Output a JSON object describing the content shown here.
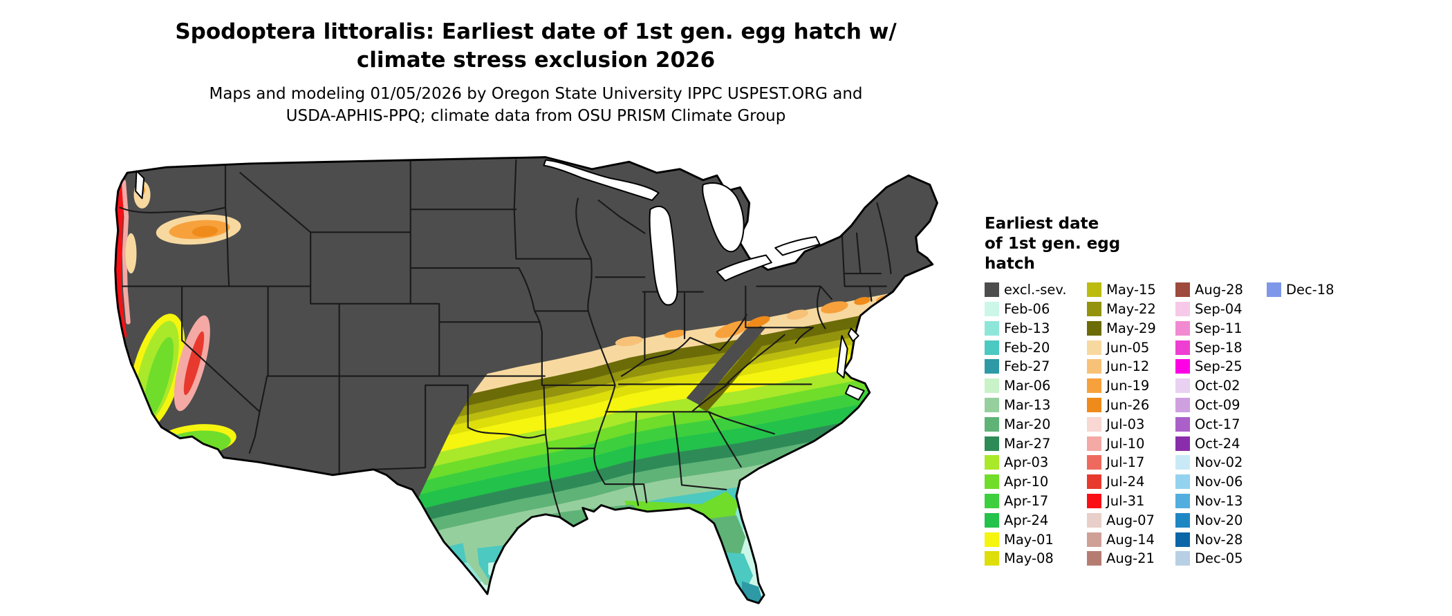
{
  "title": {
    "line1": "Spodoptera littoralis: Earliest date of 1st gen. egg hatch w/",
    "line2": "climate stress exclusion 2026"
  },
  "subtitle": {
    "line1": "Maps and modeling 01/05/2026 by Oregon State University IPPC USPEST.ORG and",
    "line2": "USDA-APHIS-PPQ; climate data from OSU PRISM Climate Group"
  },
  "legend": {
    "title_lines": [
      "Earliest date",
      "of 1st gen. egg",
      "hatch"
    ],
    "columns": [
      [
        {
          "label": "excl.-sev.",
          "key": "excl"
        },
        {
          "label": "Feb-06",
          "key": "feb06"
        },
        {
          "label": "Feb-13",
          "key": "feb13"
        },
        {
          "label": "Feb-20",
          "key": "feb20"
        },
        {
          "label": "Feb-27",
          "key": "feb27"
        },
        {
          "label": "Mar-06",
          "key": "mar06"
        },
        {
          "label": "Mar-13",
          "key": "mar13"
        },
        {
          "label": "Mar-20",
          "key": "mar20"
        },
        {
          "label": "Mar-27",
          "key": "mar27"
        },
        {
          "label": "Apr-03",
          "key": "apr03"
        },
        {
          "label": "Apr-10",
          "key": "apr10"
        },
        {
          "label": "Apr-17",
          "key": "apr17"
        },
        {
          "label": "Apr-24",
          "key": "apr24"
        },
        {
          "label": "May-01",
          "key": "may01"
        },
        {
          "label": "May-08",
          "key": "may08"
        }
      ],
      [
        {
          "label": "May-15",
          "key": "may15"
        },
        {
          "label": "May-22",
          "key": "may22"
        },
        {
          "label": "May-29",
          "key": "may29"
        },
        {
          "label": "Jun-05",
          "key": "jun05"
        },
        {
          "label": "Jun-12",
          "key": "jun12"
        },
        {
          "label": "Jun-19",
          "key": "jun19"
        },
        {
          "label": "Jun-26",
          "key": "jun26"
        },
        {
          "label": "Jul-03",
          "key": "jul03"
        },
        {
          "label": "Jul-10",
          "key": "jul10"
        },
        {
          "label": "Jul-17",
          "key": "jul17"
        },
        {
          "label": "Jul-24",
          "key": "jul24"
        },
        {
          "label": "Jul-31",
          "key": "jul31"
        },
        {
          "label": "Aug-07",
          "key": "aug07"
        },
        {
          "label": "Aug-14",
          "key": "aug14"
        },
        {
          "label": "Aug-21",
          "key": "aug21"
        }
      ],
      [
        {
          "label": "Aug-28",
          "key": "aug28"
        },
        {
          "label": "Sep-04",
          "key": "sep04"
        },
        {
          "label": "Sep-11",
          "key": "sep11"
        },
        {
          "label": "Sep-18",
          "key": "sep18"
        },
        {
          "label": "Sep-25",
          "key": "sep25"
        },
        {
          "label": "Oct-02",
          "key": "oct02"
        },
        {
          "label": "Oct-09",
          "key": "oct09"
        },
        {
          "label": "Oct-17",
          "key": "oct17"
        },
        {
          "label": "Oct-24",
          "key": "oct24"
        },
        {
          "label": "Nov-02",
          "key": "nov02"
        },
        {
          "label": "Nov-06",
          "key": "nov06"
        },
        {
          "label": "Nov-13",
          "key": "nov13"
        },
        {
          "label": "Nov-20",
          "key": "nov20"
        },
        {
          "label": "Nov-28",
          "key": "nov28"
        },
        {
          "label": "Dec-05",
          "key": "dec05"
        }
      ],
      [
        {
          "label": "Dec-18",
          "key": "dec18"
        }
      ]
    ]
  },
  "palette": {
    "excl": "#4d4d4d",
    "feb06": "#ccf7e8",
    "feb13": "#8ee6d9",
    "feb20": "#4cc9c0",
    "feb27": "#2e9aa6",
    "mar06": "#c9f2c9",
    "mar13": "#96cf9e",
    "mar20": "#5fb377",
    "mar27": "#2e8b57",
    "apr03": "#aaE82a",
    "apr10": "#6fdd2a",
    "apr17": "#3ecf3e",
    "apr24": "#22c24b",
    "may01": "#f5f50f",
    "may08": "#dede0a",
    "may15": "#bcbc10",
    "may22": "#93930e",
    "may29": "#6b6b07",
    "jun05": "#f7d9a0",
    "jun12": "#f7c278",
    "jun19": "#f7a13c",
    "jun26": "#ef8b1a",
    "jul03": "#f9d7d2",
    "jul10": "#f4a9a4",
    "jul17": "#ef6a5e",
    "jul24": "#e8392e",
    "jul31": "#fa0f14",
    "aug07": "#e8cfc9",
    "aug14": "#cfa096",
    "aug21": "#b57d72",
    "aug28": "#9e4a3c",
    "sep04": "#f7c9e8",
    "sep11": "#f28ad2",
    "sep18": "#ee3fd2",
    "sep25": "#ff00e6",
    "oct02": "#e9d1f2",
    "oct09": "#cfa0e0",
    "oct17": "#ab5fc9",
    "oct24": "#8a2dab",
    "nov02": "#c9e9f7",
    "nov06": "#93d3ef",
    "nov13": "#52aede",
    "nov20": "#1f86c4",
    "nov28": "#0b66a8",
    "dec05": "#b8cfe4",
    "dec18": "#7e97e8"
  }
}
